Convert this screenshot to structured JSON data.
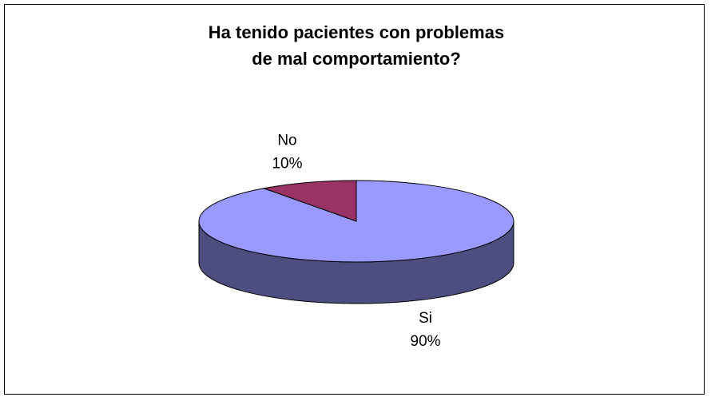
{
  "chart_data": {
    "type": "pie",
    "title": "Ha tenido pacientes con problemas de mal comportamiento?",
    "categories": [
      "No",
      "Si"
    ],
    "values": [
      10,
      90
    ],
    "value_labels": [
      "10%",
      "90%"
    ],
    "colors": [
      "#993366",
      "#9999ff"
    ]
  }
}
